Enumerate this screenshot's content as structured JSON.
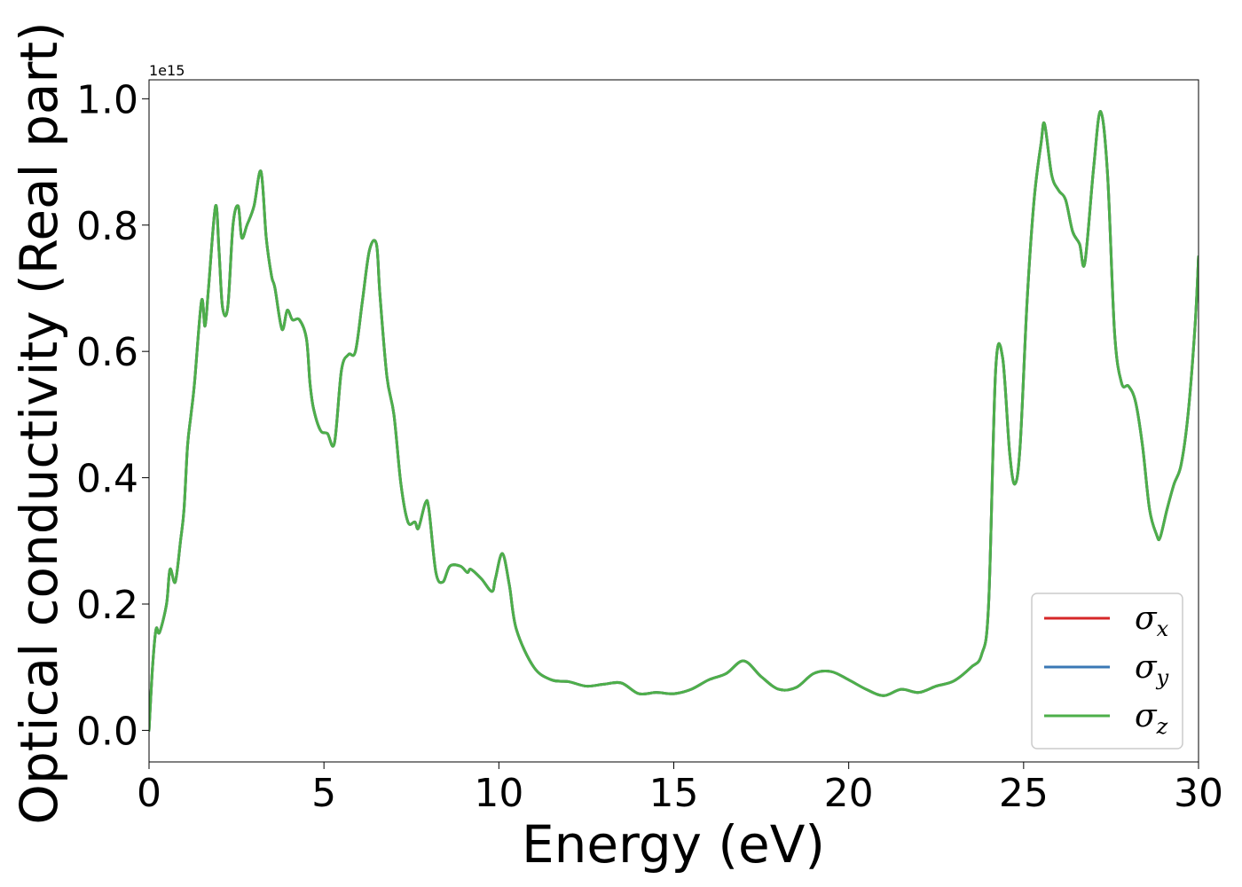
{
  "chart_data": {
    "type": "line",
    "title": "",
    "xlabel": "Energy (eV)",
    "ylabel": "Optical conductivity (Real part)",
    "y_offset_text": "1e15",
    "xlim": [
      0,
      30
    ],
    "ylim": [
      -0.05,
      1.03
    ],
    "xticks": [
      0,
      5,
      10,
      15,
      20,
      25,
      30
    ],
    "xtick_labels": [
      "0",
      "5",
      "10",
      "15",
      "20",
      "25",
      "30"
    ],
    "yticks": [
      0.0,
      0.2,
      0.4,
      0.6,
      0.8,
      1.0
    ],
    "ytick_labels": [
      "0.0",
      "0.2",
      "0.4",
      "0.6",
      "0.8",
      "1.0"
    ],
    "grid": false,
    "legend_position": "lower-right",
    "colors": {
      "sigma_x": "#d62728",
      "sigma_y": "#3a78b5",
      "sigma_z": "#4daf4a"
    },
    "series": [
      {
        "name": "σx",
        "symbol": "σ",
        "subscript": "x",
        "color": "#d62728",
        "x": [
          0,
          0.1,
          0.2,
          0.3,
          0.5,
          0.6,
          0.75,
          0.9,
          1.0,
          1.1,
          1.2,
          1.3,
          1.5,
          1.6,
          1.7,
          1.9,
          2.0,
          2.1,
          2.25,
          2.4,
          2.55,
          2.65,
          2.8,
          3.0,
          3.2,
          3.35,
          3.5,
          3.6,
          3.8,
          3.95,
          4.1,
          4.3,
          4.5,
          4.6,
          4.7,
          4.9,
          5.1,
          5.3,
          5.5,
          5.7,
          5.9,
          6.1,
          6.3,
          6.5,
          6.6,
          6.8,
          7.0,
          7.2,
          7.4,
          7.6,
          7.7,
          7.9,
          8.0,
          8.2,
          8.4,
          8.6,
          8.9,
          9.1,
          9.2,
          9.5,
          9.8,
          9.9,
          10.1,
          10.3,
          10.5,
          11.0,
          11.5,
          12.0,
          12.5,
          13.0,
          13.5,
          14.0,
          14.5,
          15.0,
          15.5,
          16.0,
          16.5,
          17.0,
          17.5,
          18.0,
          18.5,
          19.0,
          19.5,
          20.0,
          20.5,
          21.0,
          21.5,
          22.0,
          22.5,
          23.0,
          23.5,
          23.8,
          24.0,
          24.2,
          24.4,
          24.6,
          24.75,
          24.9,
          25.1,
          25.3,
          25.5,
          25.6,
          25.8,
          26.0,
          26.2,
          26.4,
          26.6,
          26.75,
          27.0,
          27.2,
          27.4,
          27.6,
          27.8,
          28.0,
          28.2,
          28.4,
          28.6,
          28.8,
          28.9,
          29.1,
          29.3,
          29.5,
          29.7,
          29.9,
          30.0
        ],
        "y": [
          0.0,
          0.1,
          0.16,
          0.155,
          0.2,
          0.255,
          0.235,
          0.3,
          0.35,
          0.45,
          0.5,
          0.55,
          0.68,
          0.64,
          0.7,
          0.83,
          0.76,
          0.67,
          0.67,
          0.8,
          0.83,
          0.78,
          0.8,
          0.83,
          0.885,
          0.78,
          0.72,
          0.7,
          0.635,
          0.665,
          0.65,
          0.65,
          0.62,
          0.55,
          0.51,
          0.475,
          0.47,
          0.455,
          0.57,
          0.595,
          0.6,
          0.68,
          0.76,
          0.77,
          0.69,
          0.56,
          0.5,
          0.39,
          0.33,
          0.33,
          0.32,
          0.36,
          0.35,
          0.25,
          0.235,
          0.26,
          0.26,
          0.25,
          0.255,
          0.24,
          0.22,
          0.24,
          0.28,
          0.23,
          0.16,
          0.1,
          0.08,
          0.077,
          0.07,
          0.073,
          0.075,
          0.058,
          0.06,
          0.058,
          0.065,
          0.08,
          0.09,
          0.11,
          0.085,
          0.065,
          0.068,
          0.09,
          0.093,
          0.08,
          0.065,
          0.055,
          0.065,
          0.06,
          0.07,
          0.078,
          0.1,
          0.12,
          0.2,
          0.57,
          0.59,
          0.44,
          0.39,
          0.45,
          0.68,
          0.84,
          0.93,
          0.96,
          0.88,
          0.855,
          0.84,
          0.79,
          0.77,
          0.74,
          0.89,
          0.98,
          0.88,
          0.63,
          0.55,
          0.545,
          0.52,
          0.45,
          0.35,
          0.31,
          0.305,
          0.35,
          0.39,
          0.42,
          0.5,
          0.64,
          0.75
        ]
      },
      {
        "name": "σy",
        "symbol": "σ",
        "subscript": "y",
        "color": "#3a78b5",
        "x": [
          0,
          0.1,
          0.2,
          0.3,
          0.5,
          0.6,
          0.75,
          0.9,
          1.0,
          1.1,
          1.2,
          1.3,
          1.5,
          1.6,
          1.7,
          1.9,
          2.0,
          2.1,
          2.25,
          2.4,
          2.55,
          2.65,
          2.8,
          3.0,
          3.2,
          3.35,
          3.5,
          3.6,
          3.8,
          3.95,
          4.1,
          4.3,
          4.5,
          4.6,
          4.7,
          4.9,
          5.1,
          5.3,
          5.5,
          5.7,
          5.9,
          6.1,
          6.3,
          6.5,
          6.6,
          6.8,
          7.0,
          7.2,
          7.4,
          7.6,
          7.7,
          7.9,
          8.0,
          8.2,
          8.4,
          8.6,
          8.9,
          9.1,
          9.2,
          9.5,
          9.8,
          9.9,
          10.1,
          10.3,
          10.5,
          11.0,
          11.5,
          12.0,
          12.5,
          13.0,
          13.5,
          14.0,
          14.5,
          15.0,
          15.5,
          16.0,
          16.5,
          17.0,
          17.5,
          18.0,
          18.5,
          19.0,
          19.5,
          20.0,
          20.5,
          21.0,
          21.5,
          22.0,
          22.5,
          23.0,
          23.5,
          23.8,
          24.0,
          24.2,
          24.4,
          24.6,
          24.75,
          24.9,
          25.1,
          25.3,
          25.5,
          25.6,
          25.8,
          26.0,
          26.2,
          26.4,
          26.6,
          26.75,
          27.0,
          27.2,
          27.4,
          27.6,
          27.8,
          28.0,
          28.2,
          28.4,
          28.6,
          28.8,
          28.9,
          29.1,
          29.3,
          29.5,
          29.7,
          29.9,
          30.0
        ],
        "y": [
          0.0,
          0.1,
          0.16,
          0.155,
          0.2,
          0.255,
          0.235,
          0.3,
          0.35,
          0.45,
          0.5,
          0.55,
          0.68,
          0.64,
          0.7,
          0.83,
          0.76,
          0.67,
          0.67,
          0.8,
          0.83,
          0.78,
          0.8,
          0.83,
          0.885,
          0.78,
          0.72,
          0.7,
          0.635,
          0.665,
          0.65,
          0.65,
          0.62,
          0.55,
          0.51,
          0.475,
          0.47,
          0.455,
          0.57,
          0.595,
          0.6,
          0.68,
          0.76,
          0.77,
          0.69,
          0.56,
          0.5,
          0.39,
          0.33,
          0.33,
          0.32,
          0.36,
          0.35,
          0.25,
          0.235,
          0.26,
          0.26,
          0.25,
          0.255,
          0.24,
          0.22,
          0.24,
          0.28,
          0.23,
          0.16,
          0.1,
          0.08,
          0.077,
          0.07,
          0.073,
          0.075,
          0.058,
          0.06,
          0.058,
          0.065,
          0.08,
          0.09,
          0.11,
          0.085,
          0.065,
          0.068,
          0.09,
          0.093,
          0.08,
          0.065,
          0.055,
          0.065,
          0.06,
          0.07,
          0.078,
          0.1,
          0.12,
          0.2,
          0.57,
          0.59,
          0.44,
          0.39,
          0.45,
          0.68,
          0.84,
          0.93,
          0.96,
          0.88,
          0.855,
          0.84,
          0.79,
          0.77,
          0.74,
          0.89,
          0.98,
          0.88,
          0.63,
          0.55,
          0.545,
          0.52,
          0.45,
          0.35,
          0.31,
          0.305,
          0.35,
          0.39,
          0.42,
          0.5,
          0.64,
          0.75
        ]
      },
      {
        "name": "σz",
        "symbol": "σ",
        "subscript": "z",
        "color": "#4daf4a",
        "x": [
          0,
          0.1,
          0.2,
          0.3,
          0.5,
          0.6,
          0.75,
          0.9,
          1.0,
          1.1,
          1.2,
          1.3,
          1.5,
          1.6,
          1.7,
          1.9,
          2.0,
          2.1,
          2.25,
          2.4,
          2.55,
          2.65,
          2.8,
          3.0,
          3.2,
          3.35,
          3.5,
          3.6,
          3.8,
          3.95,
          4.1,
          4.3,
          4.5,
          4.6,
          4.7,
          4.9,
          5.1,
          5.3,
          5.5,
          5.7,
          5.9,
          6.1,
          6.3,
          6.5,
          6.6,
          6.8,
          7.0,
          7.2,
          7.4,
          7.6,
          7.7,
          7.9,
          8.0,
          8.2,
          8.4,
          8.6,
          8.9,
          9.1,
          9.2,
          9.5,
          9.8,
          9.9,
          10.1,
          10.3,
          10.5,
          11.0,
          11.5,
          12.0,
          12.5,
          13.0,
          13.5,
          14.0,
          14.5,
          15.0,
          15.5,
          16.0,
          16.5,
          17.0,
          17.5,
          18.0,
          18.5,
          19.0,
          19.5,
          20.0,
          20.5,
          21.0,
          21.5,
          22.0,
          22.5,
          23.0,
          23.5,
          23.8,
          24.0,
          24.2,
          24.4,
          24.6,
          24.75,
          24.9,
          25.1,
          25.3,
          25.5,
          25.6,
          25.8,
          26.0,
          26.2,
          26.4,
          26.6,
          26.75,
          27.0,
          27.2,
          27.4,
          27.6,
          27.8,
          28.0,
          28.2,
          28.4,
          28.6,
          28.8,
          28.9,
          29.1,
          29.3,
          29.5,
          29.7,
          29.9,
          30.0
        ],
        "y": [
          0.0,
          0.1,
          0.16,
          0.155,
          0.2,
          0.255,
          0.235,
          0.3,
          0.35,
          0.45,
          0.5,
          0.55,
          0.68,
          0.64,
          0.7,
          0.83,
          0.76,
          0.67,
          0.67,
          0.8,
          0.83,
          0.78,
          0.8,
          0.83,
          0.885,
          0.78,
          0.72,
          0.7,
          0.635,
          0.665,
          0.65,
          0.65,
          0.62,
          0.55,
          0.51,
          0.475,
          0.47,
          0.455,
          0.57,
          0.595,
          0.6,
          0.68,
          0.76,
          0.77,
          0.69,
          0.56,
          0.5,
          0.39,
          0.33,
          0.33,
          0.32,
          0.36,
          0.35,
          0.25,
          0.235,
          0.26,
          0.26,
          0.25,
          0.255,
          0.24,
          0.22,
          0.24,
          0.28,
          0.23,
          0.16,
          0.1,
          0.08,
          0.077,
          0.07,
          0.073,
          0.075,
          0.058,
          0.06,
          0.058,
          0.065,
          0.08,
          0.09,
          0.11,
          0.085,
          0.065,
          0.068,
          0.09,
          0.093,
          0.08,
          0.065,
          0.055,
          0.065,
          0.06,
          0.07,
          0.078,
          0.1,
          0.12,
          0.2,
          0.57,
          0.59,
          0.44,
          0.39,
          0.45,
          0.68,
          0.84,
          0.93,
          0.96,
          0.88,
          0.855,
          0.84,
          0.79,
          0.77,
          0.74,
          0.89,
          0.98,
          0.88,
          0.63,
          0.55,
          0.545,
          0.52,
          0.45,
          0.35,
          0.31,
          0.305,
          0.35,
          0.39,
          0.42,
          0.5,
          0.64,
          0.75
        ]
      }
    ]
  }
}
